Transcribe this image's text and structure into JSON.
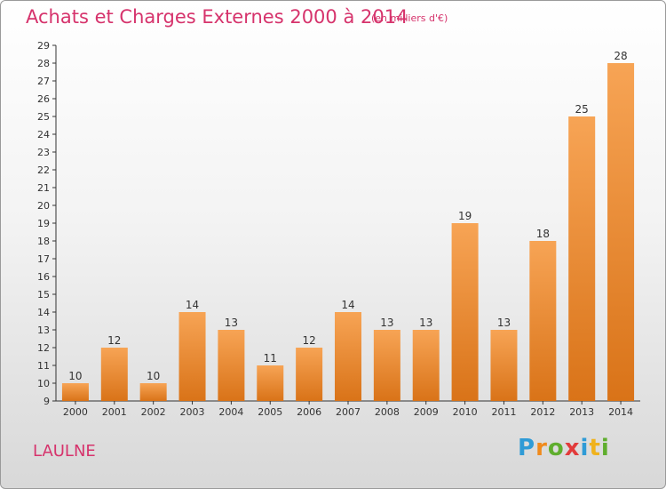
{
  "header": {
    "title": "Achats et Charges Externes 2000 à 2014",
    "subtitle": "(en milliers d'€)"
  },
  "commune": "LAULNE",
  "logo": {
    "text": "Proxiti"
  },
  "colors": {
    "accent": "#d6336c",
    "bar_top": "#f7a455",
    "bar_bottom": "#d97318"
  },
  "chart_data": {
    "type": "bar",
    "title": "Achats et Charges Externes 2000 à 2014",
    "subtitle": "(en milliers d'€)",
    "xlabel": "",
    "ylabel": "",
    "ylim": [
      9,
      29
    ],
    "yticks": [
      9,
      10,
      11,
      12,
      13,
      14,
      15,
      16,
      17,
      18,
      19,
      20,
      21,
      22,
      23,
      24,
      25,
      26,
      27,
      28,
      29
    ],
    "categories": [
      "2000",
      "2001",
      "2002",
      "2003",
      "2004",
      "2005",
      "2006",
      "2007",
      "2008",
      "2009",
      "2010",
      "2011",
      "2012",
      "2013",
      "2014"
    ],
    "values": [
      10,
      12,
      10,
      14,
      13,
      11,
      12,
      14,
      13,
      13,
      19,
      13,
      18,
      25,
      28
    ],
    "grid": false,
    "legend": "none"
  }
}
